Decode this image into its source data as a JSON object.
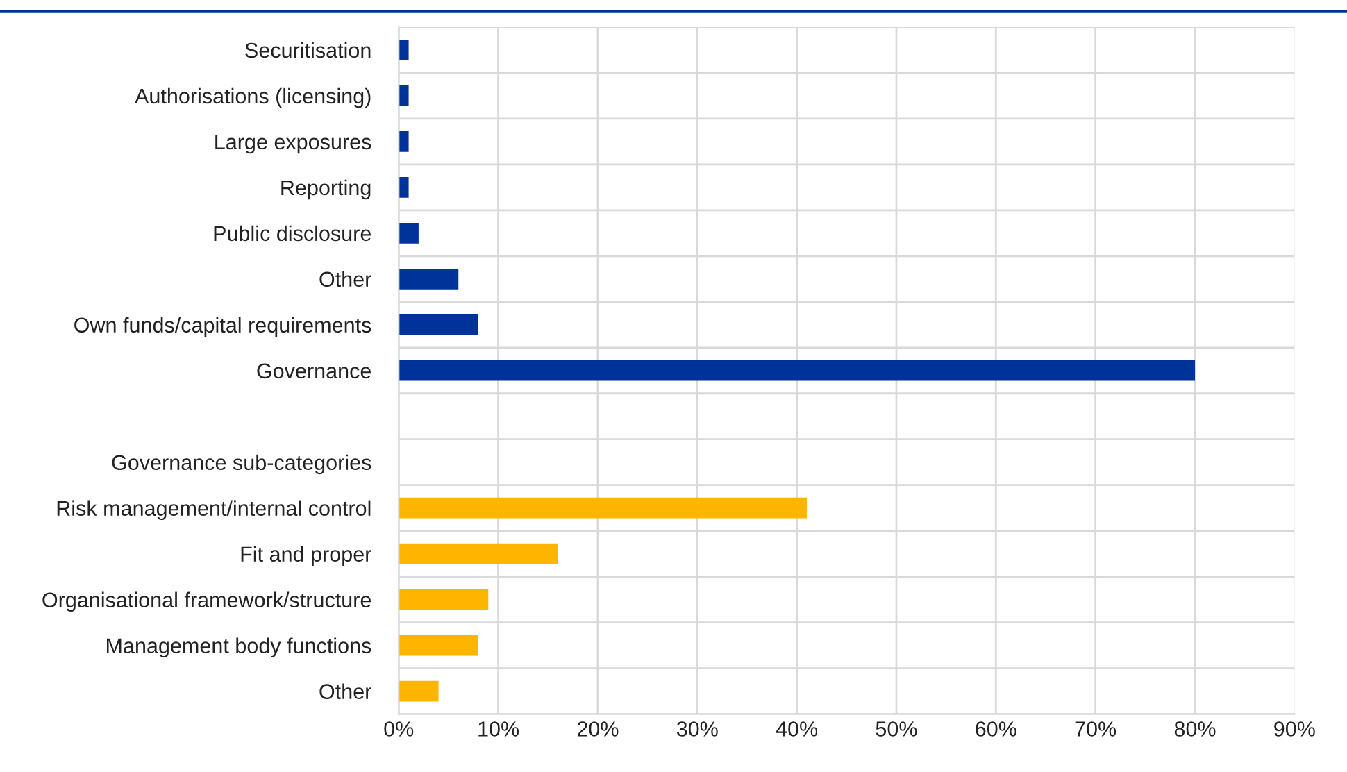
{
  "chart_data": {
    "type": "bar",
    "orientation": "horizontal",
    "categories": [
      "Securitisation",
      "Authorisations (licensing)",
      "Large exposures",
      "Reporting",
      "Public disclosure",
      "Other",
      "Own funds/capital requirements",
      "Governance",
      null,
      "Governance sub-categories",
      "Risk management/internal control",
      "Fit and proper",
      "Organisational framework/structure",
      "Management body functions",
      "Other"
    ],
    "values": [
      1,
      1,
      1,
      1,
      2,
      6,
      8,
      80,
      null,
      null,
      41,
      16,
      9,
      8,
      4
    ],
    "colors": [
      "#003399",
      "#003399",
      "#003399",
      "#003399",
      "#003399",
      "#003399",
      "#003399",
      "#003399",
      null,
      null,
      "#ffb400",
      "#ffb400",
      "#ffb400",
      "#ffb400",
      "#ffb400"
    ],
    "xlim": [
      0,
      90
    ],
    "xticks": [
      {
        "value": 0,
        "label": "0%"
      },
      {
        "value": 10,
        "label": "10%"
      },
      {
        "value": 20,
        "label": "20%"
      },
      {
        "value": 30,
        "label": "30%"
      },
      {
        "value": 40,
        "label": "40%"
      },
      {
        "value": 50,
        "label": "50%"
      },
      {
        "value": 60,
        "label": "60%"
      },
      {
        "value": 70,
        "label": "70%"
      },
      {
        "value": 80,
        "label": "80%"
      },
      {
        "value": 90,
        "label": "90%"
      }
    ],
    "grid": true
  }
}
